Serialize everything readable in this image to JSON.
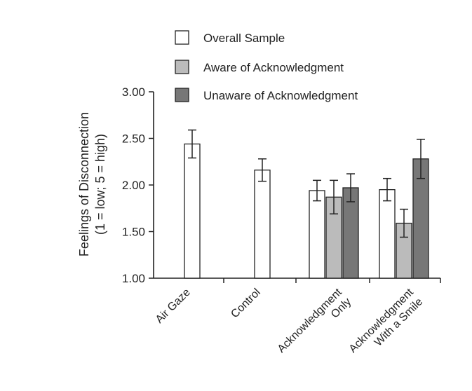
{
  "chart_data": {
    "type": "bar",
    "title": "",
    "ylabel_line1": "Feelings of Disconnection",
    "ylabel_line2": "(1 = low; 5 = high)",
    "xlabel": "",
    "ylim": [
      1.0,
      3.0
    ],
    "yticks": [
      "1.00",
      "1.50",
      "2.00",
      "2.50",
      "3.00"
    ],
    "ytick_values": [
      1.0,
      1.5,
      2.0,
      2.5,
      3.0
    ],
    "categories": [
      [
        "Air Gaze"
      ],
      [
        "Control"
      ],
      [
        "Acknowledgment",
        "Only"
      ],
      [
        "Acknowledgment",
        "With a Smile"
      ]
    ],
    "series": [
      {
        "name": "Overall Sample",
        "color": "#ffffff",
        "values": [
          2.44,
          2.16,
          1.94,
          1.95
        ],
        "errors": [
          0.15,
          0.12,
          0.11,
          0.12
        ]
      },
      {
        "name": "Aware of Acknowledgment",
        "color": "#bbbbbb",
        "values": [
          null,
          null,
          1.87,
          1.59
        ],
        "errors": [
          null,
          null,
          0.18,
          0.15
        ]
      },
      {
        "name": "Unaware of Acknowledgment",
        "color": "#777777",
        "values": [
          null,
          null,
          1.97,
          2.28
        ],
        "errors": [
          null,
          null,
          0.15,
          0.21
        ]
      }
    ],
    "legend_position": "top",
    "grid": false
  }
}
